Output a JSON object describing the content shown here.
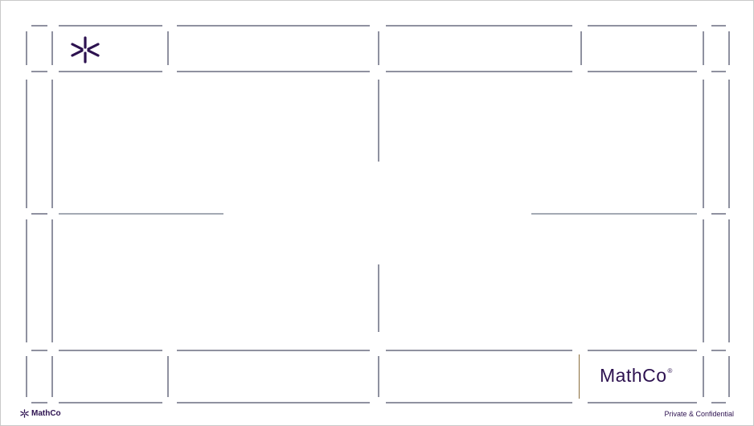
{
  "brand": {
    "logo_text": "MathCo",
    "registered_mark": "®",
    "color": "#2d1250",
    "icon": "asterisk-icon"
  },
  "footer": {
    "logo_text": "MathCo",
    "confidential": "Private & Confidential"
  },
  "colors": {
    "frame_line": "#1f2340",
    "accent_divider": "#8a6d3b"
  }
}
